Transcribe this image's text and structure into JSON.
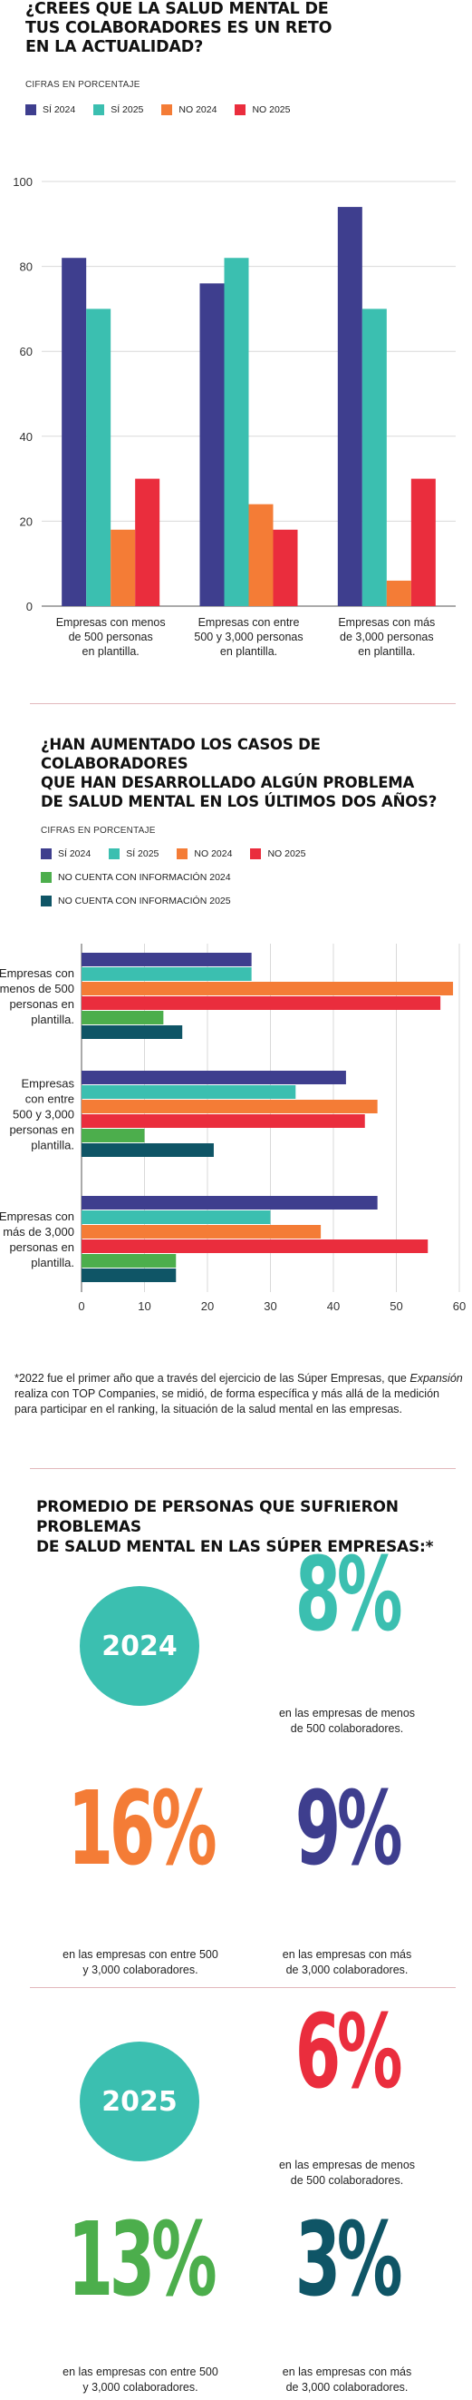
{
  "colors": {
    "si2024": "#3e3e8e",
    "si2025": "#3bbfb0",
    "no2024": "#f47c36",
    "no2025": "#ea2d3d",
    "nocuenta2024": "#4cae4c",
    "nocuenta2025": "#0f5566",
    "circle": "#3bbfb0"
  },
  "chart1": {
    "title_lines": [
      "¿CREES QUE LA SALUD MENTAL DE",
      "TUS COLABORADORES ES UN RETO",
      "EN LA ACTUALIDAD?"
    ],
    "subtitle": "CIFRAS EN PORCENTAJE",
    "legend": [
      "SÍ 2024",
      "SÍ 2025",
      "NO 2024",
      "NO 2025"
    ]
  },
  "chart2": {
    "title_lines": [
      "¿HAN AUMENTADO LOS CASOS DE COLABORADORES",
      "QUE HAN DESARROLLADO ALGÚN PROBLEMA",
      "DE SALUD MENTAL EN LOS ÚLTIMOS DOS AÑOS?"
    ],
    "subtitle": "CIFRAS EN PORCENTAJE",
    "legend": [
      "SÍ 2024",
      "SÍ 2025",
      "NO 2024",
      "NO 2025",
      "NO CUENTA CON INFORMACIÓN 2024",
      "NO CUENTA CON INFORMACIÓN 2025"
    ]
  },
  "chart_data": [
    {
      "type": "bar",
      "orientation": "vertical",
      "title": "¿CREES QUE LA SALUD MENTAL DE TUS COLABORADORES ES UN RETO EN LA ACTUALIDAD?",
      "subtitle": "CIFRAS EN PORCENTAJE",
      "categories": [
        [
          "Empresas con menos",
          "de 500 personas",
          "en plantilla."
        ],
        [
          "Empresas con entre",
          "500 y 3,000 personas",
          "en plantilla."
        ],
        [
          "Empresas con más",
          "de 3,000 personas",
          "en plantilla."
        ]
      ],
      "series": [
        {
          "name": "SÍ 2024",
          "values": [
            82,
            76,
            94
          ]
        },
        {
          "name": "SÍ 2025",
          "values": [
            70,
            82,
            70
          ]
        },
        {
          "name": "NO 2024",
          "values": [
            18,
            24,
            6
          ]
        },
        {
          "name": "NO 2025",
          "values": [
            30,
            18,
            30
          ]
        }
      ],
      "ylim": [
        0,
        100
      ],
      "yticks": [
        0,
        20,
        40,
        60,
        80,
        100
      ],
      "grid": true,
      "legend_position": "top-left"
    },
    {
      "type": "bar",
      "orientation": "horizontal",
      "title": "¿HAN AUMENTADO LOS CASOS DE COLABORADORES QUE HAN DESARROLLADO ALGÚN PROBLEMA DE SALUD MENTAL EN LOS ÚLTIMOS DOS AÑOS?",
      "subtitle": "CIFRAS EN PORCENTAJE",
      "categories": [
        [
          "Empresas con",
          "menos de 500",
          "personas en",
          "plantilla."
        ],
        [
          "Empresas",
          "con entre",
          "500 y 3,000",
          "personas en",
          "plantilla."
        ],
        [
          "Empresas con",
          "más de 3,000",
          "personas en",
          "plantilla."
        ]
      ],
      "series": [
        {
          "name": "SÍ 2024",
          "values": [
            27,
            42,
            47
          ]
        },
        {
          "name": "SÍ 2025",
          "values": [
            27,
            34,
            30
          ]
        },
        {
          "name": "NO 2024",
          "values": [
            59,
            47,
            38
          ]
        },
        {
          "name": "NO 2025",
          "values": [
            57,
            45,
            55
          ]
        },
        {
          "name": "NO CUENTA CON INFORMACIÓN 2024",
          "values": [
            13,
            10,
            15
          ]
        },
        {
          "name": "NO CUENTA CON INFORMACIÓN 2025",
          "values": [
            16,
            21,
            15
          ]
        }
      ],
      "xlim": [
        0,
        60
      ],
      "xticks": [
        0,
        10,
        20,
        30,
        40,
        50,
        60
      ],
      "grid": true,
      "legend_position": "top-left"
    }
  ],
  "note": {
    "before": "*2022 fue el primer año que a través del ejercicio de las Súper Empresas, que ",
    "italic": "Expansión",
    "after": " realiza con TOP Companies, se midió, de forma específica y más allá de la medición para participar en el ranking, la situación de la salud mental en las empresas."
  },
  "average": {
    "title_lines": [
      "PROMEDIO DE PERSONAS QUE SUFRIERON PROBLEMAS",
      "DE SALUD MENTAL EN LAS SÚPER EMPRESAS:*"
    ],
    "year2024": {
      "year": "2024",
      "stats": [
        {
          "value": "8%",
          "caption": [
            "en las empresas de menos",
            "de 500 colaboradores."
          ]
        },
        {
          "value": "16%",
          "caption": [
            "en las empresas con entre 500",
            "y 3,000 colaboradores."
          ]
        },
        {
          "value": "9%",
          "caption": [
            "en las empresas con más",
            "de 3,000 colaboradores."
          ]
        }
      ]
    },
    "year2025": {
      "year": "2025",
      "stats": [
        {
          "value": "6%",
          "caption": [
            "en las empresas de menos",
            "de 500 colaboradores."
          ]
        },
        {
          "value": "13%",
          "caption": [
            "en las empresas con entre 500",
            "y 3,000 colaboradores."
          ]
        },
        {
          "value": "3%",
          "caption": [
            "en las empresas con más",
            "de 3,000 colaboradores."
          ]
        }
      ]
    }
  }
}
